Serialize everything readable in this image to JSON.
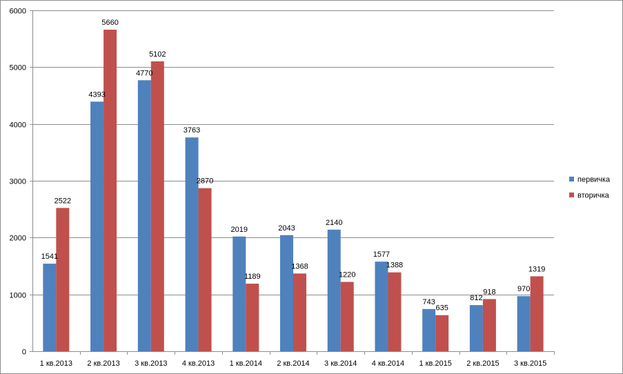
{
  "chart_data": {
    "type": "bar",
    "categories": [
      "1 кв.2013",
      "2 кв.2013",
      "3 кв.2013",
      "4 кв.2013",
      "1 кв.2014",
      "2 кв.2014",
      "3 кв.2014",
      "4 кв.2014",
      "1 кв.2015",
      "2 кв.2015",
      "3 кв.2015"
    ],
    "series": [
      {
        "name": "первичка",
        "color": "#4f81bd",
        "values": [
          1541,
          4393,
          4770,
          3763,
          2019,
          2043,
          2140,
          1577,
          743,
          812,
          970
        ]
      },
      {
        "name": "вторичка",
        "color": "#c0504d",
        "values": [
          2522,
          5660,
          5102,
          2870,
          1189,
          1368,
          1220,
          1388,
          635,
          918,
          1319
        ]
      }
    ],
    "ylim": [
      0,
      6000
    ],
    "yticks": [
      0,
      1000,
      2000,
      3000,
      4000,
      5000,
      6000
    ],
    "grid": true,
    "legend_position": "right",
    "data_labels": true
  }
}
